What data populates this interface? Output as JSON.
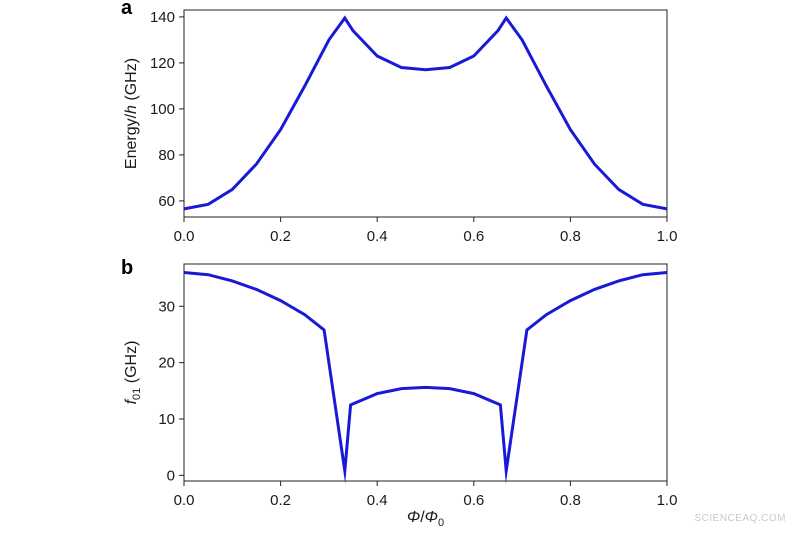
{
  "colors": {
    "line": "#1a1ad6",
    "axes": "#222222",
    "text": "#1a1a1a"
  },
  "watermark": "SCIENCEAQ.COM",
  "chart_data": [
    {
      "type": "line",
      "panel_label": "a",
      "xlabel": "",
      "ylabel_prefix": "Energy/",
      "ylabel_italic": "h",
      "ylabel_suffix": " (GHz)",
      "xlim": [
        0.0,
        1.0
      ],
      "ylim": [
        53,
        143
      ],
      "xticks": [
        0.0,
        0.2,
        0.4,
        0.6,
        0.8,
        1.0
      ],
      "xtick_labels": [
        "0.0",
        "0.2",
        "0.4",
        "0.6",
        "0.8",
        "1.0"
      ],
      "yticks": [
        60,
        80,
        100,
        120,
        140
      ],
      "ytick_labels": [
        "60",
        "80",
        "100",
        "120",
        "140"
      ],
      "grid": false,
      "series": [
        {
          "x": [
            0.0,
            0.05,
            0.1,
            0.15,
            0.2,
            0.25,
            0.3,
            0.333,
            0.35,
            0.4,
            0.45,
            0.5,
            0.55,
            0.6,
            0.65,
            0.667,
            0.7,
            0.75,
            0.8,
            0.85,
            0.9,
            0.95,
            1.0
          ],
          "y": [
            56.5,
            58.5,
            65,
            76,
            91,
            110,
            130,
            139.5,
            134,
            123,
            118,
            117,
            118,
            123,
            134,
            139.5,
            130,
            110,
            91,
            76,
            65,
            58.5,
            56.5
          ]
        }
      ]
    },
    {
      "type": "line",
      "panel_label": "b",
      "xlabel_phi": "Φ",
      "xlabel_sep": "/",
      "xlabel_phi0": "Φ",
      "xlabel_sub": "0",
      "ylabel_italic": "f",
      "ylabel_sub": "01",
      "ylabel_suffix": " (GHz)",
      "xlim": [
        0.0,
        1.0
      ],
      "ylim": [
        -1,
        37.5
      ],
      "xticks": [
        0.0,
        0.2,
        0.4,
        0.6,
        0.8,
        1.0
      ],
      "xtick_labels": [
        "0.0",
        "0.2",
        "0.4",
        "0.6",
        "0.8",
        "1.0"
      ],
      "yticks": [
        0,
        10,
        20,
        30
      ],
      "ytick_labels": [
        "0",
        "10",
        "20",
        "30"
      ],
      "grid": false,
      "series": [
        {
          "x": [
            0.0,
            0.05,
            0.1,
            0.15,
            0.2,
            0.25,
            0.29,
            0.333,
            0.345,
            0.4,
            0.45,
            0.5,
            0.55,
            0.6,
            0.655,
            0.667,
            0.71,
            0.75,
            0.8,
            0.85,
            0.9,
            0.95,
            1.0
          ],
          "y": [
            36,
            35.6,
            34.5,
            33,
            31,
            28.5,
            25.8,
            0.8,
            12.5,
            14.5,
            15.4,
            15.6,
            15.4,
            14.5,
            12.5,
            0.8,
            25.8,
            28.5,
            31,
            33,
            34.5,
            35.6,
            36
          ]
        }
      ]
    }
  ]
}
